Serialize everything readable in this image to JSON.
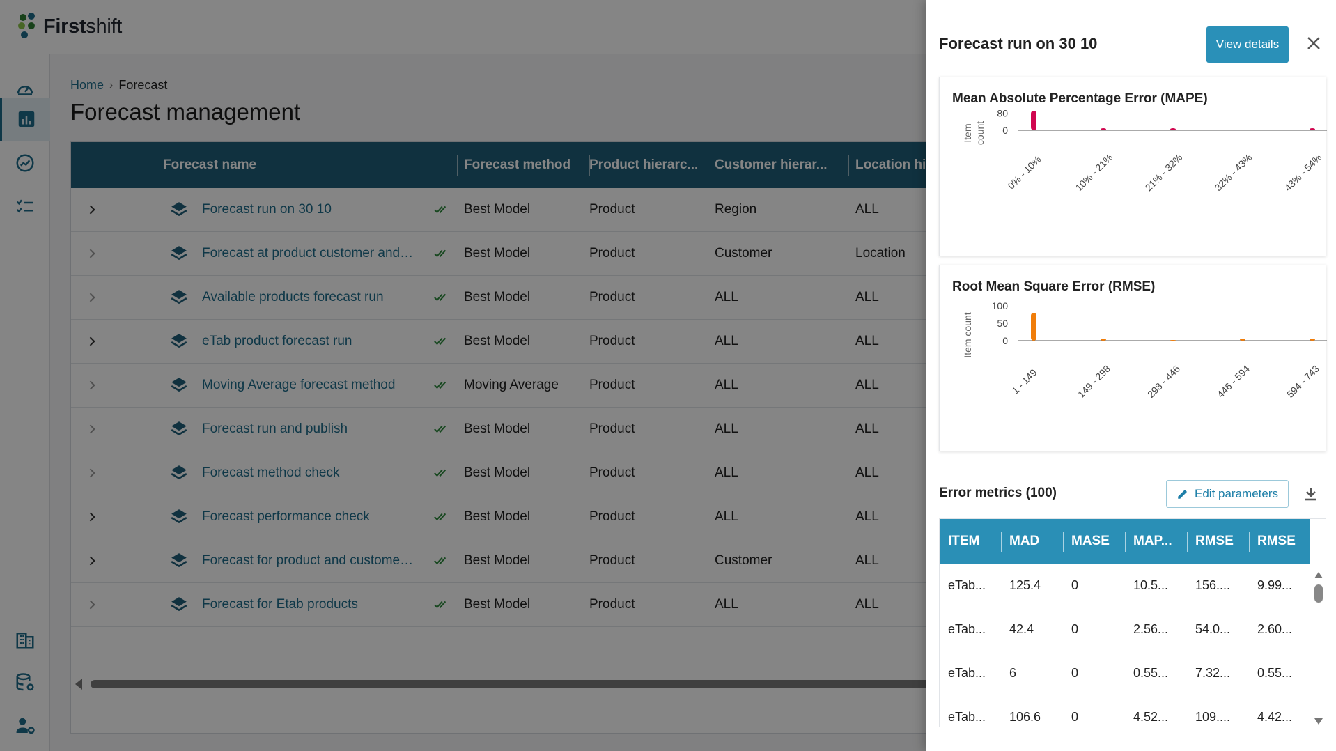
{
  "app": {
    "logo_text_bold": "First",
    "logo_text_rest": "shift"
  },
  "nav": {
    "top_icons": [
      "dashboard-icon",
      "analytics-icon",
      "trend-icon",
      "checklist-icon"
    ],
    "bottom_icons": [
      "building-icon",
      "database-settings-icon",
      "user-settings-icon"
    ],
    "active": "analytics-icon"
  },
  "breadcrumb": {
    "home": "Home",
    "separator": "›",
    "current": "Forecast"
  },
  "page": {
    "title": "Forecast management"
  },
  "grid": {
    "columns": [
      "Forecast name",
      "Forecast method",
      "Product hierarc...",
      "Customer hierar...",
      "Location hi"
    ],
    "rows": [
      {
        "name": "Forecast run on 30 10",
        "method": "Best Model",
        "product": "Product",
        "customer": "Region",
        "location": "ALL",
        "expanded_dark": true
      },
      {
        "name": "Forecast at product customer and lo...",
        "method": "Best Model",
        "product": "Product",
        "customer": "Customer",
        "location": "Location",
        "expanded_dark": false
      },
      {
        "name": "Available products forecast run",
        "method": "Best Model",
        "product": "Product",
        "customer": "ALL",
        "location": "ALL",
        "expanded_dark": false
      },
      {
        "name": "eTab product forecast run",
        "method": "Best Model",
        "product": "Product",
        "customer": "ALL",
        "location": "ALL",
        "expanded_dark": true
      },
      {
        "name": "Moving Average forecast method",
        "method": "Moving Average",
        "product": "Product",
        "customer": "ALL",
        "location": "ALL",
        "expanded_dark": false
      },
      {
        "name": "Forecast run and publish",
        "method": "Best Model",
        "product": "Product",
        "customer": "ALL",
        "location": "ALL",
        "expanded_dark": false
      },
      {
        "name": "Forecast method check",
        "method": "Best Model",
        "product": "Product",
        "customer": "ALL",
        "location": "ALL",
        "expanded_dark": false
      },
      {
        "name": "Forecast performance check",
        "method": "Best Model",
        "product": "Product",
        "customer": "ALL",
        "location": "ALL",
        "expanded_dark": true
      },
      {
        "name": "Forecast for product and customer it...",
        "method": "Best Model",
        "product": "Product",
        "customer": "Customer",
        "location": "ALL",
        "expanded_dark": true
      },
      {
        "name": "Forecast for Etab products",
        "method": "Best Model",
        "product": "Product",
        "customer": "ALL",
        "location": "ALL",
        "expanded_dark": false
      }
    ]
  },
  "drawer": {
    "title": "Forecast run on 30 10",
    "view_details_label": "View details",
    "error_metrics_title": "Error metrics (100)",
    "edit_parameters_label": "Edit parameters",
    "metrics_table": {
      "columns": [
        "ITEM",
        "MAD",
        "MASE",
        "MAP...",
        "RMSE",
        "RMSE"
      ],
      "rows": [
        [
          "eTab...",
          "125.4",
          "0",
          "10.5...",
          "156....",
          "9.99..."
        ],
        [
          "eTab...",
          "42.4",
          "0",
          "2.56...",
          "54.0...",
          "2.60..."
        ],
        [
          "eTab...",
          "6",
          "0",
          "0.55...",
          "7.32...",
          "0.55..."
        ],
        [
          "eTab...",
          "106.6",
          "0",
          "4.52...",
          "109....",
          "4.42..."
        ]
      ]
    }
  },
  "chart_data": [
    {
      "type": "bar",
      "title": "Mean Absolute Percentage Error (MAPE)",
      "ylabel": "Item count",
      "xlabel": "",
      "categories": [
        "0% - 10%",
        "10% - 21%",
        "21% - 32%",
        "32% - 43%",
        "43% - 54%"
      ],
      "values": [
        92,
        3,
        1,
        0,
        1
      ],
      "yticks": [
        0,
        80
      ],
      "ylim": [
        0,
        92
      ],
      "color": "#d0064f",
      "grid": false
    },
    {
      "type": "bar",
      "title": "Root Mean Square Error (RMSE)",
      "ylabel": "Item count",
      "xlabel": "",
      "categories": [
        "1 - 149",
        "149 - 298",
        "298 - 446",
        "446 - 594",
        "594 - 743"
      ],
      "values": [
        80,
        2,
        0,
        1,
        1
      ],
      "yticks": [
        0,
        50,
        100
      ],
      "ylim": [
        0,
        100
      ],
      "color": "#f07d0a",
      "grid": false
    }
  ]
}
